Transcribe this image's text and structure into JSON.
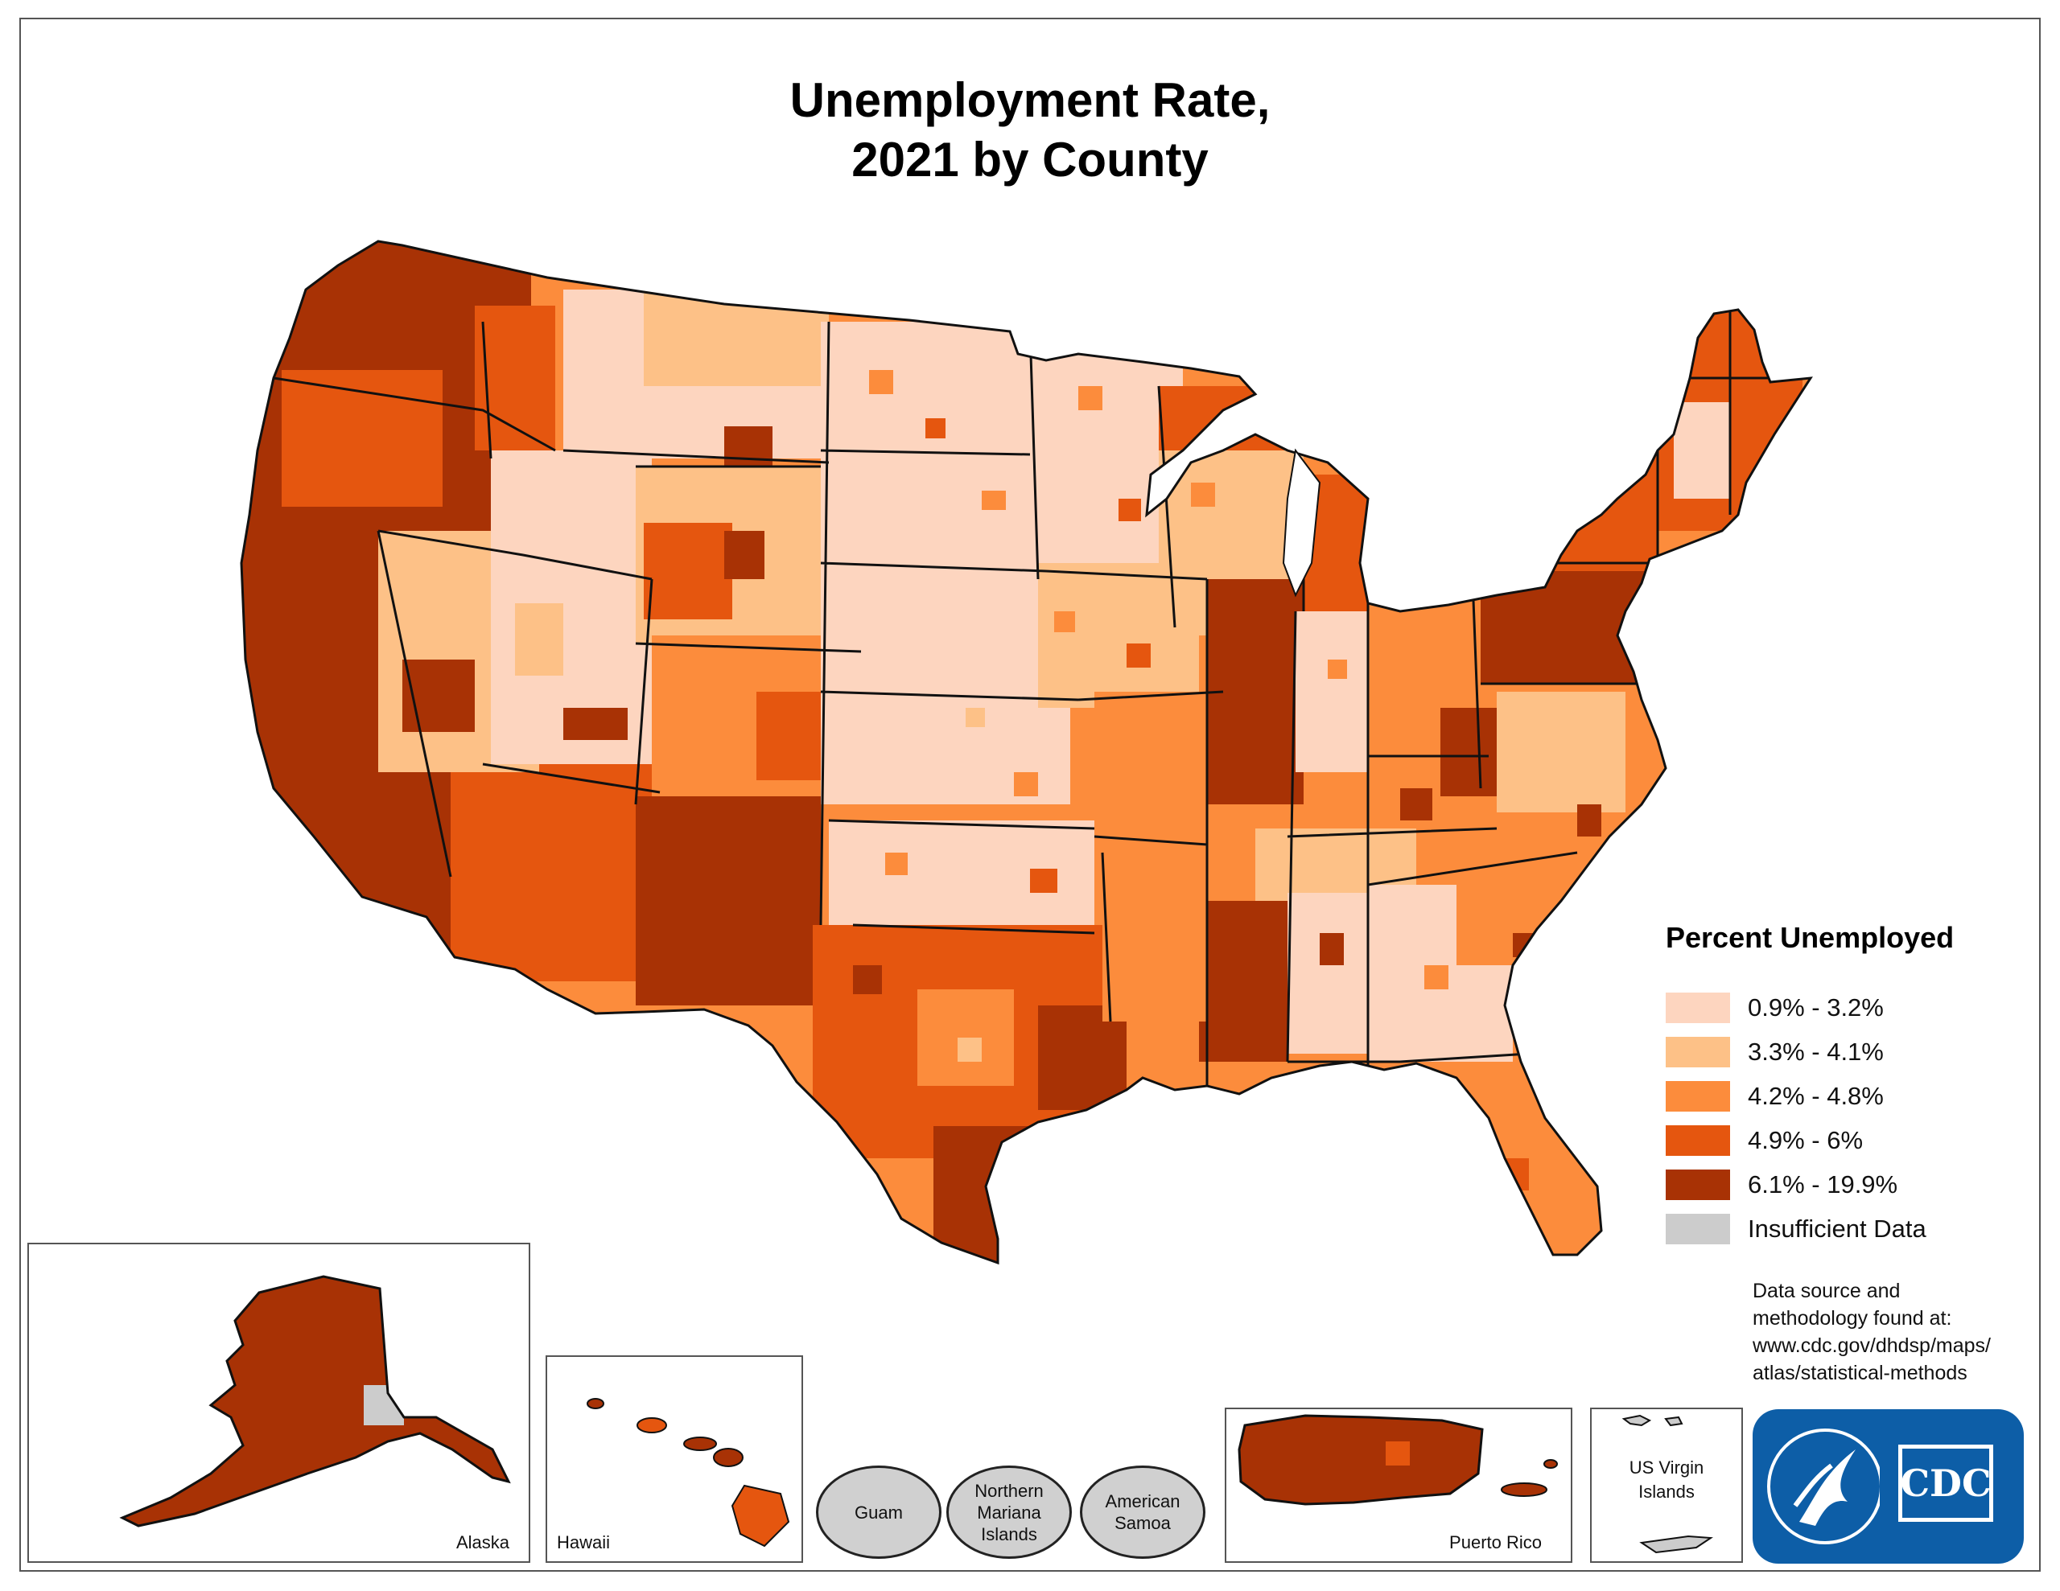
{
  "title": {
    "line1": "Unemployment Rate,",
    "line2": "2021 by County"
  },
  "legend": {
    "title": "Percent Unemployed",
    "items": [
      {
        "label": "0.9% - 3.2%",
        "color": "#fdd5bf"
      },
      {
        "label": "3.3% - 4.1%",
        "color": "#fdc187"
      },
      {
        "label": "4.2% - 4.8%",
        "color": "#fc8c3c"
      },
      {
        "label": "4.9% - 6%",
        "color": "#e5560f"
      },
      {
        "label": "6.1% - 19.9%",
        "color": "#a83205"
      },
      {
        "label": "Insufficient Data",
        "color": "#cccccc"
      }
    ]
  },
  "source": {
    "line1": "Data source and",
    "line2": "methodology found at:",
    "line3": "www.cdc.gov/dhdsp/maps/",
    "line4": "atlas/statistical-methods"
  },
  "insets": {
    "alaska": "Alaska",
    "hawaii": "Hawaii",
    "guam": "Guam",
    "northern_mariana_l1": "Northern",
    "northern_mariana_l2": "Mariana",
    "northern_mariana_l3": "Islands",
    "american_samoa_l1": "American",
    "american_samoa_l2": "Samoa",
    "puerto_rico": "Puerto Rico",
    "virgin_islands_l1": "US Virgin",
    "virgin_islands_l2": "Islands"
  },
  "logo": {
    "text": "CDC",
    "color": "#0d5ea7"
  },
  "colors": {
    "low": "#fdd5bf",
    "low_mid": "#fdc187",
    "mid": "#fc8c3c",
    "high_mid": "#e5560f",
    "high": "#a83205",
    "no_data": "#cccccc",
    "border": "#111111"
  }
}
